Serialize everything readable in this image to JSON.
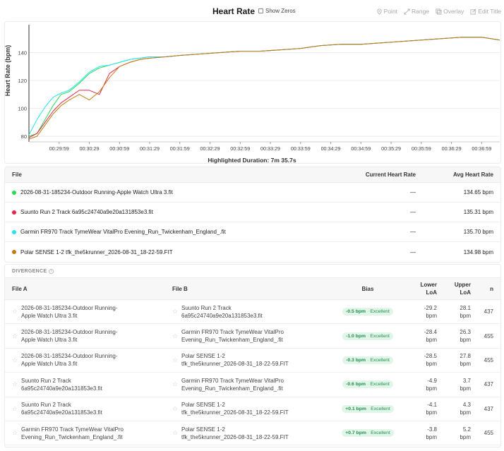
{
  "header": {
    "title": "Heart Rate",
    "show_zeros_label": "Show Zeros",
    "toolbar": [
      {
        "label": "Point",
        "icon": "pin-icon"
      },
      {
        "label": "Range",
        "icon": "range-arrows-icon"
      },
      {
        "label": "Overlay",
        "icon": "overlay-icon"
      },
      {
        "label": "Edit Title",
        "icon": "edit-icon"
      }
    ]
  },
  "chart_data": {
    "type": "line",
    "title": "Heart Rate",
    "ylabel": "Heart Rate (bpm)",
    "xlabel": "",
    "ylim": [
      76,
      160
    ],
    "yticks": [
      80,
      100,
      120,
      140
    ],
    "xlim": [
      "00:29:29",
      "00:37:17"
    ],
    "xticks": [
      "00:29:59",
      "00:30:29",
      "00:30:59",
      "00:31:29",
      "00:31:59",
      "00:32:29",
      "00:32:59",
      "00:33:29",
      "00:33:59",
      "00:34:29",
      "00:34:59",
      "00:35:29",
      "00:35:59",
      "00:36:29",
      "00:36:59"
    ],
    "grid": "horizontal",
    "series": [
      {
        "name": "2026-08-31-185234-Outdoor Running-Apple Watch Ultra 3.fit",
        "color": "#22dd55",
        "x": [
          "00:29:29",
          "00:29:37",
          "00:29:45",
          "00:29:53",
          "00:30:01",
          "00:30:09",
          "00:30:19",
          "00:30:29",
          "00:30:39",
          "00:30:49",
          "00:30:59",
          "00:31:09",
          "00:31:19",
          "00:31:29",
          "00:31:45",
          "00:31:59",
          "00:32:19",
          "00:32:39",
          "00:32:59",
          "00:33:19",
          "00:33:39",
          "00:33:59",
          "00:34:19",
          "00:34:39",
          "00:34:59",
          "00:35:19",
          "00:35:39",
          "00:35:59",
          "00:36:19",
          "00:36:39",
          "00:36:59",
          "00:37:17"
        ],
        "y": [
          80,
          82,
          92,
          102,
          110,
          112,
          118,
          125,
          129,
          131,
          133,
          135,
          136,
          137,
          137,
          138,
          139,
          140,
          141,
          141,
          142,
          143,
          145,
          146,
          146,
          147,
          148,
          149,
          150,
          151,
          151,
          149
        ]
      },
      {
        "name": "Suunto Run 2 Track 6a95c24740a9e20a131853e3.fit",
        "color": "#e8264a",
        "x": [
          "00:29:29",
          "00:29:37",
          "00:29:45",
          "00:29:53",
          "00:30:01",
          "00:30:09",
          "00:30:19",
          "00:30:29",
          "00:30:39",
          "00:30:49",
          "00:30:59",
          "00:31:09",
          "00:31:19",
          "00:31:29",
          "00:31:45",
          "00:31:59",
          "00:32:19",
          "00:32:39",
          "00:32:59",
          "00:33:19",
          "00:33:39",
          "00:33:59",
          "00:34:19",
          "00:34:39",
          "00:34:59",
          "00:35:19",
          "00:35:39",
          "00:35:59",
          "00:36:19",
          "00:36:39",
          "00:36:59",
          "00:37:17"
        ],
        "y": [
          79,
          82,
          90,
          98,
          104,
          108,
          113,
          113,
          110,
          125,
          130,
          133,
          135,
          136,
          137,
          138,
          139,
          140,
          141,
          141,
          142,
          143,
          145,
          146,
          146,
          147,
          148,
          149,
          150,
          151,
          151,
          149
        ]
      },
      {
        "name": "Garmin FR970 Track TymeWear VitalPro Evening_Run_Twickenham_England_.fit",
        "color": "#22e3f0",
        "x": [
          "00:29:29",
          "00:29:37",
          "00:29:45",
          "00:29:53",
          "00:30:01",
          "00:30:09",
          "00:30:19",
          "00:30:29",
          "00:30:39",
          "00:30:49",
          "00:30:59",
          "00:31:09",
          "00:31:19",
          "00:31:29",
          "00:31:45",
          "00:31:59",
          "00:32:19",
          "00:32:39",
          "00:32:59",
          "00:33:19",
          "00:33:39",
          "00:33:59",
          "00:34:19",
          "00:34:39",
          "00:34:59",
          "00:35:19",
          "00:35:39",
          "00:35:59",
          "00:36:19",
          "00:36:39",
          "00:36:59",
          "00:37:17"
        ],
        "y": [
          81,
          92,
          101,
          108,
          111,
          113,
          119,
          126,
          130,
          131,
          133,
          135,
          136,
          137,
          137,
          138,
          139,
          140,
          141,
          141,
          142,
          143,
          145,
          146,
          146,
          147,
          148,
          149,
          150,
          151,
          151,
          149
        ]
      },
      {
        "name": "Polar SENSE 1-2 tfk_the5krunner_2026-08-31_18-22-59.FIT",
        "color": "#c47a12",
        "x": [
          "00:29:29",
          "00:29:37",
          "00:29:45",
          "00:29:53",
          "00:30:01",
          "00:30:09",
          "00:30:19",
          "00:30:29",
          "00:30:39",
          "00:30:49",
          "00:30:59",
          "00:31:09",
          "00:31:19",
          "00:31:29",
          "00:31:45",
          "00:31:59",
          "00:32:19",
          "00:32:39",
          "00:32:59",
          "00:33:19",
          "00:33:39",
          "00:33:59",
          "00:34:19",
          "00:34:39",
          "00:34:59",
          "00:35:19",
          "00:35:39",
          "00:35:59",
          "00:36:19",
          "00:36:39",
          "00:36:59",
          "00:37:17"
        ],
        "y": [
          78,
          80,
          88,
          96,
          102,
          106,
          110,
          106,
          112,
          122,
          130,
          133,
          135,
          136,
          137,
          138,
          139,
          140,
          141,
          141,
          142,
          143,
          145,
          146,
          146,
          147,
          148,
          149,
          150,
          151,
          151,
          149
        ]
      }
    ]
  },
  "highlighted_duration": "Highlighted Duration: 7m 35.7s",
  "files": {
    "headers": {
      "file": "File",
      "current": "Current Heart Rate",
      "avg": "Avg Heart Rate"
    },
    "rows": [
      {
        "name": "2026-08-31-185234-Outdoor Running-Apple Watch Ultra 3.fit",
        "color": "#22dd55",
        "current": "—",
        "avg": "134.65 bpm"
      },
      {
        "name": "Suunto Run 2 Track 6a95c24740a9e20a131853e3.fit",
        "color": "#e8264a",
        "current": "—",
        "avg": "135.31 bpm"
      },
      {
        "name": "Garmin FR970 Track TymeWear VitalPro Evening_Run_Twickenham_England_.fit",
        "color": "#22e3f0",
        "current": "—",
        "avg": "135.70 bpm"
      },
      {
        "name": "Polar SENSE 1-2 tfk_the5krunner_2026-08-31_18-22-59.FIT",
        "color": "#c47a12",
        "current": "—",
        "avg": "134.98 bpm"
      }
    ]
  },
  "divergence": {
    "title": "DIVERGENCE",
    "headers": {
      "file_a": "File A",
      "file_b": "File B",
      "bias": "Bias",
      "lower_1": "Lower",
      "lower_2": "LoA",
      "upper_1": "Upper",
      "upper_2": "LoA",
      "n": "n"
    },
    "rows": [
      {
        "a1": "2026-08-31-185234-Outdoor Running-",
        "a2": "Apple Watch Ultra 3.fit",
        "b1": "Suunto Run 2 Track",
        "b2": "6a95c24740a9e20a131853e3.fit",
        "bias": "-0.5 bpm",
        "rating": "Excellent",
        "lo1": "-29.2",
        "lo2": "bpm",
        "up1": "28.1",
        "up2": "bpm",
        "n": "437"
      },
      {
        "a1": "2026-08-31-185234-Outdoor Running-",
        "a2": "Apple Watch Ultra 3.fit",
        "b1": "Garmin FR970 Track TymeWear VitalPro",
        "b2": "Evening_Run_Twickenham_England_.fit",
        "bias": "-1.0 bpm",
        "rating": "Excellent",
        "lo1": "-28.4",
        "lo2": "bpm",
        "up1": "26.3",
        "up2": "bpm",
        "n": "455"
      },
      {
        "a1": "2026-08-31-185234-Outdoor Running-",
        "a2": "Apple Watch Ultra 3.fit",
        "b1": "Polar SENSE 1-2",
        "b2": "tfk_the5krunner_2026-08-31_18-22-59.FIT",
        "bias": "-0.3 bpm",
        "rating": "Excellent",
        "lo1": "-28.5",
        "lo2": "bpm",
        "up1": "27.8",
        "up2": "bpm",
        "n": "455"
      },
      {
        "a1": "Suunto Run 2 Track",
        "a2": "6a95c24740a9e20a131853e3.fit",
        "b1": "Garmin FR970 Track TymeWear VitalPro",
        "b2": "Evening_Run_Twickenham_England_.fit",
        "bias": "-0.6 bpm",
        "rating": "Excellent",
        "lo1": "-4.9",
        "lo2": "bpm",
        "up1": "3.7",
        "up2": "bpm",
        "n": "437"
      },
      {
        "a1": "Suunto Run 2 Track",
        "a2": "6a95c24740a9e20a131853e3.fit",
        "b1": "Polar SENSE 1-2",
        "b2": "tfk_the5krunner_2026-08-31_18-22-59.FIT",
        "bias": "+0.1 bpm",
        "rating": "Excellent",
        "lo1": "-4.1",
        "lo2": "bpm",
        "up1": "4.3",
        "up2": "bpm",
        "n": "437"
      },
      {
        "a1": "Garmin FR970 Track TymeWear VitalPro",
        "a2": "Evening_Run_Twickenham_England_.fit",
        "b1": "Polar SENSE 1-2",
        "b2": "tfk_the5krunner_2026-08-31_18-22-59.FIT",
        "bias": "+0.7 bpm",
        "rating": "Excellent",
        "lo1": "-3.8",
        "lo2": "bpm",
        "up1": "5.2",
        "up2": "bpm",
        "n": "455"
      }
    ]
  }
}
